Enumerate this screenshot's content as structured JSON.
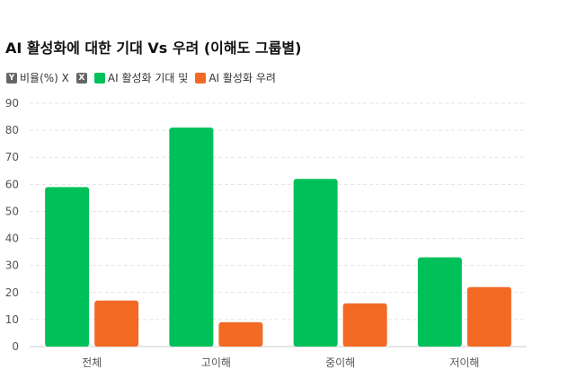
{
  "title": "AI 활성화에 대한 기대 Vs 우려 (이해도 그룹별)",
  "legend": {
    "y_badge": "Y",
    "y_label": "비율(%) X",
    "x_badge": "X",
    "series_labels": [
      "AI 활성화 기대 및",
      "AI 활성화 우려"
    ]
  },
  "colors": {
    "expectation": "#00c05a",
    "concern": "#f26a24",
    "grid": "#e3e3e3",
    "axis": "#cccccc"
  },
  "chart_data": {
    "type": "bar",
    "title": "AI 활성화에 대한 기대 Vs 우려 (이해도 그룹별)",
    "categories": [
      "전체",
      "고이해",
      "중이해",
      "저이해"
    ],
    "series": [
      {
        "name": "AI 활성화 기대 및",
        "values": [
          59,
          81,
          62,
          33
        ]
      },
      {
        "name": "AI 활성화 우려",
        "values": [
          17,
          9,
          16,
          22
        ]
      }
    ],
    "ylim": [
      0,
      90
    ],
    "yticks": [
      0,
      10,
      20,
      30,
      40,
      50,
      60,
      70,
      80,
      90
    ],
    "grid": true,
    "legend_position": "top-left"
  }
}
